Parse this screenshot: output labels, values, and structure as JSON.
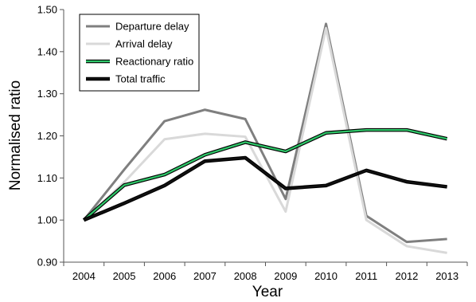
{
  "chart_data": {
    "type": "line",
    "xlabel": "Year",
    "ylabel": "Normalised ratio",
    "x": [
      "2004",
      "2005",
      "2006",
      "2007",
      "2008",
      "2009",
      "2010",
      "2011",
      "2012",
      "2013"
    ],
    "ylim": [
      0.9,
      1.5
    ],
    "yticks": [
      "0.90",
      "1.00",
      "1.10",
      "1.20",
      "1.30",
      "1.40",
      "1.50"
    ],
    "legend_position": "top-left",
    "grid": false,
    "series": [
      {
        "name": "Departure delay",
        "color": "#7f7f7f",
        "outline": false,
        "values": [
          1.0,
          1.12,
          1.235,
          1.262,
          1.24,
          1.05,
          1.466,
          1.01,
          0.948,
          0.955
        ]
      },
      {
        "name": "Arrival delay",
        "color": "#d9d9d9",
        "outline": false,
        "values": [
          1.0,
          1.09,
          1.192,
          1.205,
          1.198,
          1.02,
          1.456,
          1.0,
          0.938,
          0.922
        ]
      },
      {
        "name": "Reactionary ratio",
        "color": "#2fc86a",
        "outline": true,
        "values": [
          1.0,
          1.083,
          1.108,
          1.155,
          1.185,
          1.163,
          1.207,
          1.214,
          1.214,
          1.193
        ]
      },
      {
        "name": "Total traffic",
        "color": "#111111",
        "outline": true,
        "values": [
          1.0,
          1.04,
          1.082,
          1.14,
          1.148,
          1.075,
          1.082,
          1.118,
          1.091,
          1.079
        ]
      }
    ]
  }
}
